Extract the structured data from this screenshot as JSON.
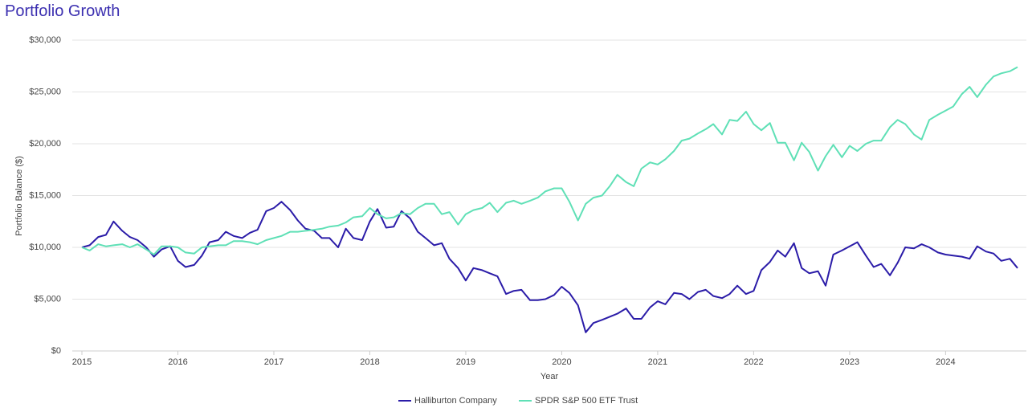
{
  "chart_data": {
    "type": "line",
    "title": "Portfolio Growth",
    "xlabel": "Year",
    "ylabel": "Portfolio Balance ($)",
    "x": [
      2015,
      2015.08,
      2015.17,
      2015.25,
      2015.33,
      2015.42,
      2015.5,
      2015.58,
      2015.67,
      2015.75,
      2015.83,
      2015.92,
      2016,
      2016.08,
      2016.17,
      2016.25,
      2016.33,
      2016.42,
      2016.5,
      2016.58,
      2016.67,
      2016.75,
      2016.83,
      2016.92,
      2017,
      2017.08,
      2017.17,
      2017.25,
      2017.33,
      2017.42,
      2017.5,
      2017.58,
      2017.67,
      2017.75,
      2017.83,
      2017.92,
      2018,
      2018.08,
      2018.17,
      2018.25,
      2018.33,
      2018.42,
      2018.5,
      2018.58,
      2018.67,
      2018.75,
      2018.83,
      2018.92,
      2019,
      2019.08,
      2019.17,
      2019.25,
      2019.33,
      2019.42,
      2019.5,
      2019.58,
      2019.67,
      2019.75,
      2019.83,
      2019.92,
      2020,
      2020.08,
      2020.17,
      2020.25,
      2020.33,
      2020.42,
      2020.5,
      2020.58,
      2020.67,
      2020.75,
      2020.83,
      2020.92,
      2021,
      2021.08,
      2021.17,
      2021.25,
      2021.33,
      2021.42,
      2021.5,
      2021.58,
      2021.67,
      2021.75,
      2021.83,
      2021.92,
      2022,
      2022.08,
      2022.17,
      2022.25,
      2022.33,
      2022.42,
      2022.5,
      2022.58,
      2022.67,
      2022.75,
      2022.83,
      2022.92,
      2023,
      2023.08,
      2023.17,
      2023.25,
      2023.33,
      2023.42,
      2023.5,
      2023.58,
      2023.67,
      2023.75,
      2023.83,
      2023.92,
      2024,
      2024.08,
      2024.17,
      2024.25,
      2024.33,
      2024.42,
      2024.5,
      2024.58,
      2024.67,
      2024.75
    ],
    "series": [
      {
        "name": "Halliburton Company",
        "color": "#2b1ca8",
        "values": [
          10000,
          10200,
          11000,
          11200,
          12500,
          11600,
          11000,
          10700,
          10000,
          9100,
          9800,
          10100,
          8700,
          8100,
          8300,
          9200,
          10500,
          10700,
          11500,
          11100,
          10900,
          11400,
          11700,
          13500,
          13800,
          14400,
          13600,
          12600,
          11800,
          11600,
          10900,
          10900,
          10000,
          11800,
          10900,
          10700,
          12500,
          13700,
          11900,
          12000,
          13500,
          12800,
          11500,
          10900,
          10200,
          10400,
          8900,
          8000,
          6800,
          8000,
          7800,
          7500,
          7200,
          5500,
          5800,
          5900,
          4900,
          4900,
          5000,
          5400,
          6200,
          5600,
          4400,
          1800,
          2700,
          3000,
          3300,
          3600,
          4100,
          3100,
          3100,
          4200,
          4800,
          4500,
          5600,
          5500,
          5000,
          5700,
          5900,
          5300,
          5100,
          5500,
          6300,
          5500,
          5800,
          7800,
          8600,
          9700,
          9100,
          10400,
          8000,
          7500,
          7700,
          6300,
          9300,
          9700,
          10100,
          10500,
          9200,
          8100,
          8400,
          7300,
          8500,
          10000,
          9900,
          10300,
          10000,
          9500,
          9300,
          9200,
          9100,
          8900,
          10100,
          9600,
          9400,
          8700,
          8900,
          8000
        ]
      },
      {
        "name": "SPDR S&P 500 ETF Trust",
        "color": "#5fe0b6",
        "values": [
          10000,
          9700,
          10300,
          10100,
          10200,
          10300,
          10000,
          10300,
          9800,
          9300,
          10100,
          10100,
          10000,
          9500,
          9400,
          10000,
          10100,
          10200,
          10200,
          10600,
          10600,
          10500,
          10300,
          10700,
          10900,
          11100,
          11500,
          11500,
          11600,
          11700,
          11800,
          12000,
          12100,
          12400,
          12900,
          13000,
          13800,
          13200,
          12800,
          12900,
          13300,
          13200,
          13800,
          14200,
          14200,
          13200,
          13400,
          12200,
          13200,
          13600,
          13800,
          14300,
          13400,
          14300,
          14500,
          14200,
          14500,
          14800,
          15400,
          15700,
          15700,
          14400,
          12600,
          14200,
          14800,
          15000,
          15900,
          17000,
          16300,
          15900,
          17600,
          18200,
          18000,
          18500,
          19300,
          20300,
          20500,
          21000,
          21400,
          21900,
          20900,
          22300,
          22200,
          23100,
          21900,
          21300,
          22000,
          20100,
          20100,
          18400,
          20100,
          19200,
          17400,
          18800,
          19900,
          18700,
          19800,
          19300,
          20000,
          20300,
          20300,
          21600,
          22300,
          21900,
          20900,
          20400,
          22300,
          22800,
          23200,
          23600,
          24800,
          25500,
          24500,
          25700,
          26500,
          26800,
          27000,
          27400
        ]
      }
    ],
    "xlim": [
      2015,
      2024.75
    ],
    "xticks": [
      2015,
      2016,
      2017,
      2018,
      2019,
      2020,
      2021,
      2022,
      2023,
      2024
    ],
    "ylim": [
      0,
      30000
    ],
    "yticks": [
      {
        "value": 0,
        "label": "$0"
      },
      {
        "value": 5000,
        "label": "$5,000"
      },
      {
        "value": 10000,
        "label": "$10,000"
      },
      {
        "value": 15000,
        "label": "$15,000"
      },
      {
        "value": 20000,
        "label": "$20,000"
      },
      {
        "value": 25000,
        "label": "$25,000"
      },
      {
        "value": 30000,
        "label": "$30,000"
      }
    ],
    "grid": true,
    "legend": "bottom"
  }
}
